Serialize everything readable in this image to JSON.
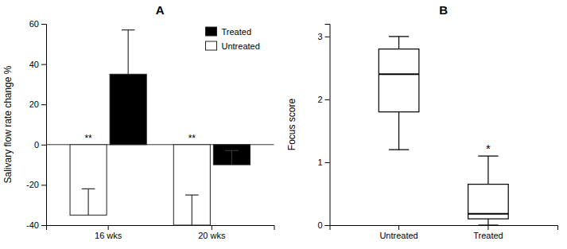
{
  "chart_data": [
    {
      "type": "bar",
      "title": "A",
      "ylabel": "Salivary flow rate change %",
      "categories": [
        "16 wks",
        "20 wks"
      ],
      "series": [
        {
          "name": "Untreated",
          "color": "white",
          "values": [
            -35,
            -40
          ],
          "errors": [
            13,
            15
          ]
        },
        {
          "name": "Treated",
          "color": "black",
          "values": [
            35,
            -10
          ],
          "errors": [
            22,
            7
          ]
        }
      ],
      "ylim": [
        -40,
        60
      ],
      "yticks": [
        -40,
        -20,
        0,
        20,
        40,
        60
      ],
      "legend": "upper right",
      "annotations": [
        {
          "text": "**",
          "category": "16 wks",
          "series": "Untreated"
        },
        {
          "text": "**",
          "category": "20 wks",
          "series": "Untreated"
        }
      ]
    },
    {
      "type": "box",
      "title": "B",
      "ylabel": "Focus score",
      "categories": [
        "Untreated",
        "Treated"
      ],
      "boxes": [
        {
          "median": 2.4,
          "q1": 1.8,
          "q3": 2.8,
          "whislo": 1.2,
          "whishi": 3.0
        },
        {
          "median": 0.18,
          "q1": 0.1,
          "q3": 0.65,
          "whislo": 0.0,
          "whishi": 1.1
        }
      ],
      "color": "black",
      "ylim": [
        0,
        3.2
      ],
      "yticks": [
        0,
        1,
        2,
        3
      ],
      "annotations": [
        {
          "text": "*",
          "category": "Treated"
        }
      ]
    }
  ]
}
